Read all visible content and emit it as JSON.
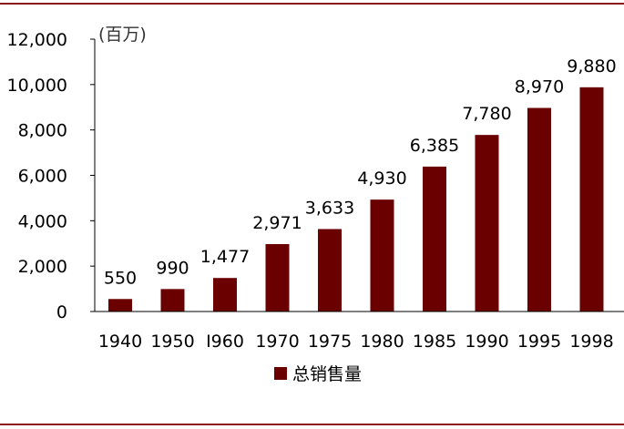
{
  "chart_data": {
    "type": "bar",
    "unit_label": "(百万)",
    "categories": [
      "1940",
      "1950",
      "I960",
      "1970",
      "1975",
      "1980",
      "1985",
      "1990",
      "1995",
      "1998"
    ],
    "series": [
      {
        "name": "总销售量",
        "values": [
          550,
          990,
          1477,
          2971,
          3633,
          4930,
          6385,
          7780,
          8970,
          9880
        ],
        "value_labels": [
          "550",
          "990",
          "1,477",
          "2,971",
          "3,633",
          "4,930",
          "6,385",
          "7,780",
          "8,970",
          "9,880"
        ],
        "color": "#6b0000"
      }
    ],
    "y_ticks": [
      0,
      2000,
      4000,
      6000,
      8000,
      10000,
      12000
    ],
    "y_tick_labels": [
      "0",
      "2,000",
      "4,000",
      "6,000",
      "8,000",
      "10,000",
      "12,000"
    ],
    "ylim": [
      0,
      12000
    ],
    "grid": false,
    "legend": "bottom",
    "border_color": "#8b1a1a"
  }
}
